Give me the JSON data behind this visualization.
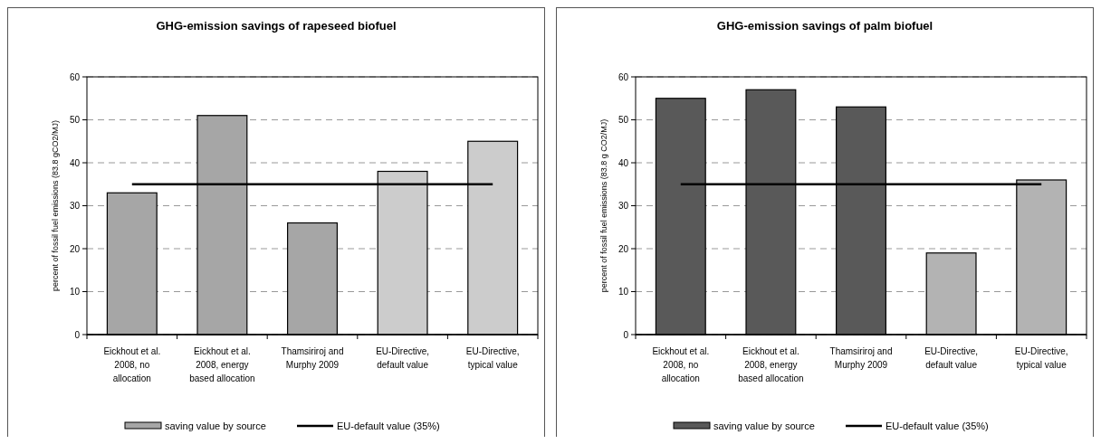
{
  "chart_data": [
    {
      "type": "bar",
      "title": "GHG-emission savings of rapeseed biofuel",
      "ylabel": "percent of fossil fuel emissions (83.8 gCO2/MJ)",
      "categories": [
        "Eickhout et al. 2008, no allocation",
        "Eickhout et al. 2008, energy based allocation",
        "Thamsiriroj and Murphy 2009",
        "EU-Directive, default value",
        "EU-Directive, typical value"
      ],
      "series": [
        {
          "name": "saving value by source",
          "colors": [
            "#a6a6a6",
            "#a6a6a6",
            "#a6a6a6",
            "#cccccc",
            "#cccccc"
          ],
          "values": [
            33,
            51,
            26,
            38,
            45
          ]
        },
        {
          "name": "EU-default value (35%)",
          "type": "line",
          "color": "#000000",
          "values": [
            35,
            35,
            35,
            35,
            35
          ]
        }
      ],
      "ylim": [
        0,
        60
      ],
      "yticks": [
        0,
        10,
        20,
        30,
        40,
        50,
        60
      ],
      "grid": "y",
      "legend": "bottom",
      "marker": "none"
    },
    {
      "type": "bar",
      "title": "GHG-emission savings of palm biofuel",
      "ylabel": "percent of fossil fuel emissions (83.8 g CO2/MJ)",
      "categories": [
        "Eickhout et al. 2008, no allocation",
        "Eickhout et al. 2008, energy based allocation",
        "Thamsiriroj and Murphy 2009",
        "EU-Directive, default value",
        "EU-Directive, typical value"
      ],
      "series": [
        {
          "name": "saving value by source",
          "colors": [
            "#595959",
            "#595959",
            "#595959",
            "#b3b3b3",
            "#b3b3b3"
          ],
          "values": [
            55,
            57,
            53,
            19,
            36
          ]
        },
        {
          "name": "EU-default value (35%)",
          "type": "line",
          "color": "#000000",
          "values": [
            35,
            35,
            35,
            35,
            35
          ]
        }
      ],
      "ylim": [
        0,
        60
      ],
      "yticks": [
        0,
        10,
        20,
        30,
        40,
        50,
        60
      ],
      "grid": "y",
      "legend": "bottom",
      "marker": "none"
    }
  ]
}
